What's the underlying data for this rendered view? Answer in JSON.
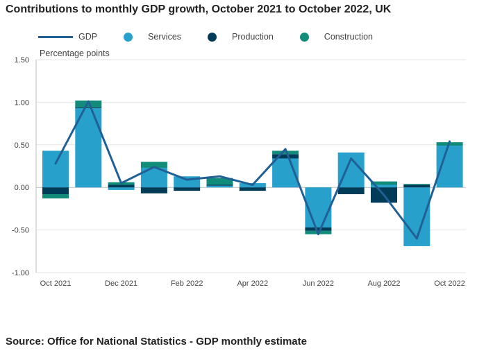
{
  "title": "Contributions to monthly GDP growth, October 2021 to October 2022, UK",
  "source": "Source: Office for National Statistics - GDP monthly estimate",
  "chart_data": {
    "type": "bar",
    "stacked": true,
    "ylabel": "Percentage points",
    "ylim": [
      -1.0,
      1.5
    ],
    "yticks": [
      "1.50",
      "1.00",
      "0.50",
      "0.00",
      "-0.50",
      "-1.00"
    ],
    "ytick_values": [
      1.5,
      1.0,
      0.5,
      0.0,
      -0.5,
      -1.0
    ],
    "grid": true,
    "legend_position": "top",
    "categories": [
      "Oct 2021",
      "Nov 2021",
      "Dec 2021",
      "Jan 2022",
      "Feb 2022",
      "Mar 2022",
      "Apr 2022",
      "May 2022",
      "Jun 2022",
      "Jul 2022",
      "Aug 2022",
      "Sep 2022",
      "Oct 2022"
    ],
    "xtick_labels": [
      "Oct 2021",
      "",
      "Dec 2021",
      "",
      "Feb 2022",
      "",
      "Apr 2022",
      "",
      "Jun 2022",
      "",
      "Aug 2022",
      "",
      "Oct 2022"
    ],
    "series": [
      {
        "name": "GDP",
        "kind": "line",
        "color": "#206095",
        "values": [
          0.28,
          1.01,
          0.05,
          0.24,
          0.09,
          0.13,
          0.03,
          0.45,
          -0.55,
          0.34,
          -0.09,
          -0.6,
          0.54
        ]
      },
      {
        "name": "Services",
        "kind": "bar",
        "color": "#27a0cc",
        "values": [
          0.43,
          0.93,
          -0.03,
          0.23,
          0.13,
          0.02,
          0.05,
          0.34,
          -0.47,
          0.41,
          0.03,
          -0.69,
          0.49
        ]
      },
      {
        "name": "Production",
        "kind": "bar",
        "color": "#003c57",
        "values": [
          -0.08,
          0.01,
          0.03,
          -0.07,
          -0.04,
          0.01,
          -0.04,
          0.05,
          -0.04,
          -0.08,
          -0.18,
          0.03,
          0.0
        ]
      },
      {
        "name": "Construction",
        "kind": "bar",
        "color": "#118c7b",
        "values": [
          -0.05,
          0.08,
          0.03,
          0.07,
          0.0,
          0.08,
          0.0,
          0.04,
          -0.04,
          0.0,
          0.04,
          0.01,
          0.04
        ]
      }
    ]
  }
}
